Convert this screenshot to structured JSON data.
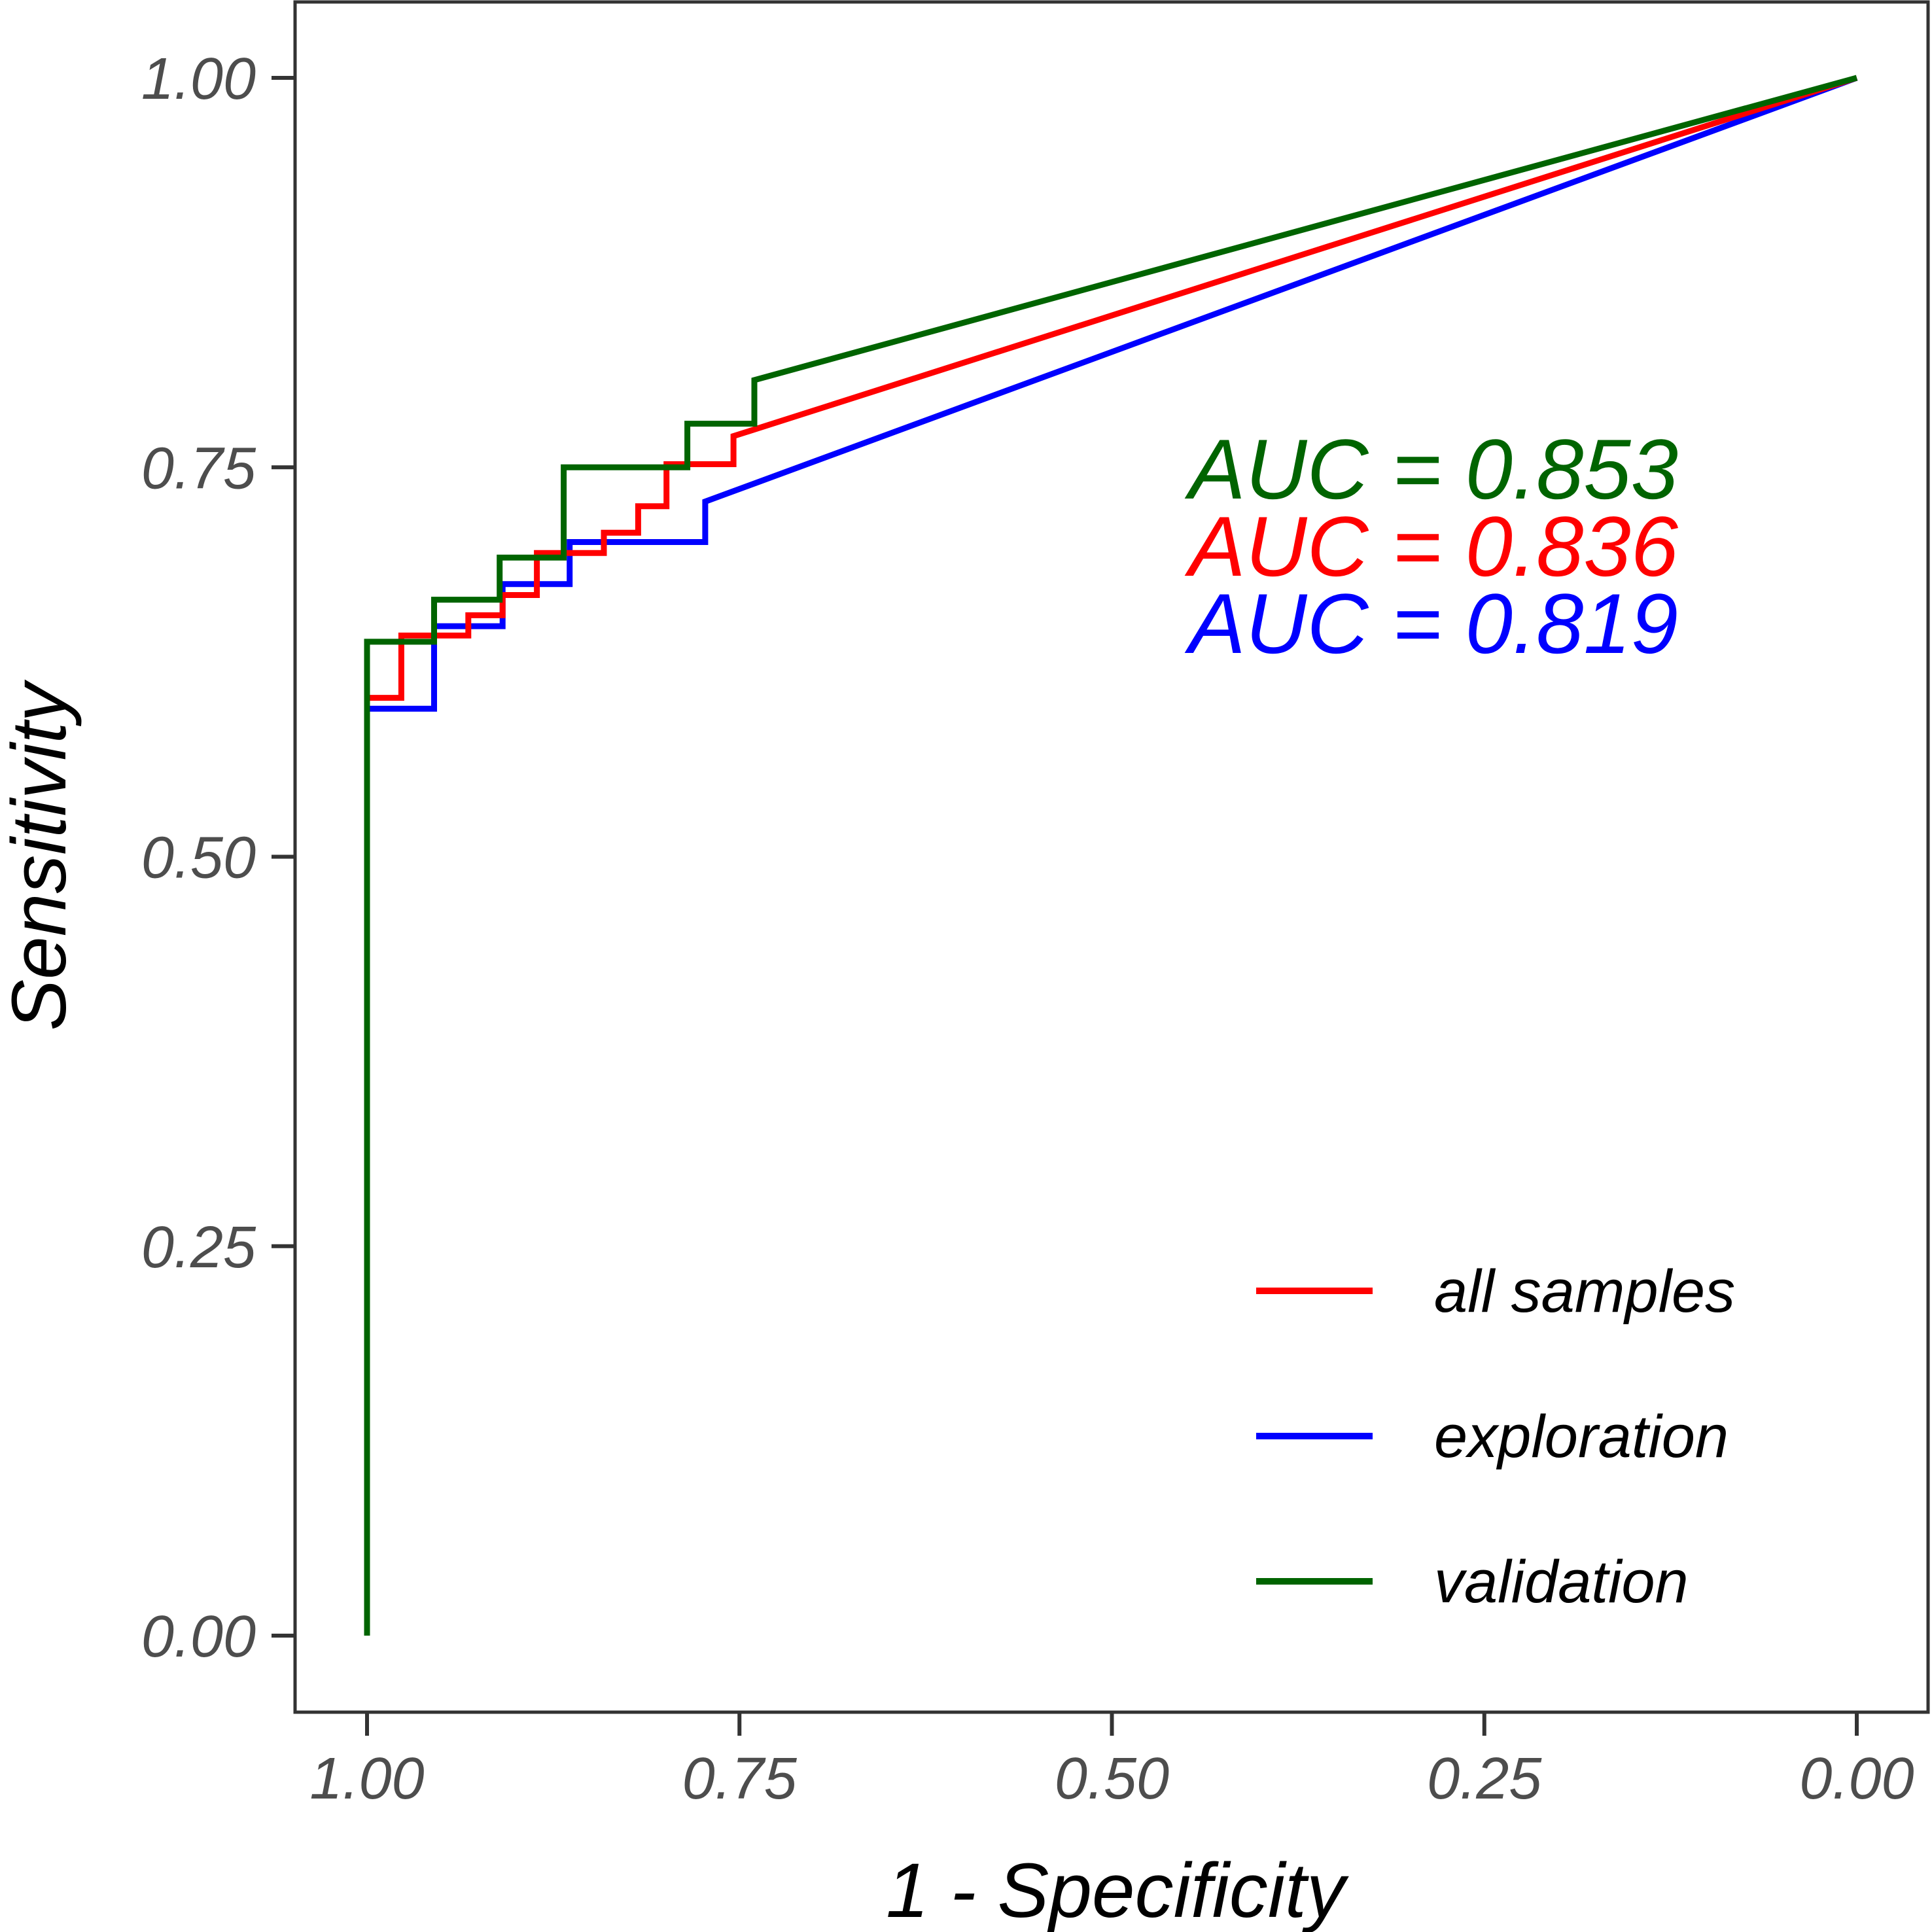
{
  "chart_data": {
    "type": "line",
    "subtype": "roc",
    "title": "",
    "xlabel": "1 - Specificity",
    "ylabel": "Sensitivity",
    "x_reversed": true,
    "xlim": [
      1.0,
      0.0
    ],
    "ylim": [
      0.0,
      1.0
    ],
    "x_ticks": [
      "1.00",
      "0.75",
      "0.50",
      "0.25",
      "0.00"
    ],
    "x_tick_values": [
      1.0,
      0.75,
      0.5,
      0.25,
      0.0
    ],
    "y_ticks": [
      "0.00",
      "0.25",
      "0.50",
      "0.75",
      "1.00"
    ],
    "y_tick_values": [
      0.0,
      0.25,
      0.5,
      0.75,
      1.0
    ],
    "grid": false,
    "legend_position": "bottom-right",
    "series": [
      {
        "name": "all samples",
        "color": "#ff0000",
        "auc_label": "AUC = 0.836",
        "points": [
          [
            1.0,
            0.0
          ],
          [
            1.0,
            0.602
          ],
          [
            0.977,
            0.602
          ],
          [
            0.977,
            0.642
          ],
          [
            0.932,
            0.642
          ],
          [
            0.932,
            0.655
          ],
          [
            0.909,
            0.655
          ],
          [
            0.909,
            0.668
          ],
          [
            0.886,
            0.668
          ],
          [
            0.886,
            0.695
          ],
          [
            0.841,
            0.695
          ],
          [
            0.841,
            0.708
          ],
          [
            0.818,
            0.708
          ],
          [
            0.818,
            0.725
          ],
          [
            0.799,
            0.725
          ],
          [
            0.799,
            0.752
          ],
          [
            0.754,
            0.752
          ],
          [
            0.754,
            0.77
          ],
          [
            0.0,
            1.0
          ]
        ]
      },
      {
        "name": "exploration",
        "color": "#0000ff",
        "auc_label": "AUC = 0.819",
        "points": [
          [
            1.0,
            0.0
          ],
          [
            1.0,
            0.595
          ],
          [
            0.955,
            0.595
          ],
          [
            0.955,
            0.648
          ],
          [
            0.909,
            0.648
          ],
          [
            0.909,
            0.675
          ],
          [
            0.864,
            0.675
          ],
          [
            0.864,
            0.702
          ],
          [
            0.773,
            0.702
          ],
          [
            0.773,
            0.728
          ],
          [
            0.0,
            1.0
          ]
        ]
      },
      {
        "name": "validation",
        "color": "#006400",
        "auc_label": "AUC = 0.853",
        "points": [
          [
            1.0,
            0.0
          ],
          [
            1.0,
            0.638
          ],
          [
            0.955,
            0.638
          ],
          [
            0.955,
            0.665
          ],
          [
            0.911,
            0.665
          ],
          [
            0.911,
            0.692
          ],
          [
            0.868,
            0.692
          ],
          [
            0.868,
            0.75
          ],
          [
            0.785,
            0.75
          ],
          [
            0.785,
            0.778
          ],
          [
            0.74,
            0.778
          ],
          [
            0.74,
            0.806
          ],
          [
            0.0,
            1.0
          ]
        ]
      }
    ],
    "auc_order": [
      "validation",
      "all samples",
      "exploration"
    ],
    "legend_order": [
      "all samples",
      "exploration",
      "validation"
    ]
  }
}
